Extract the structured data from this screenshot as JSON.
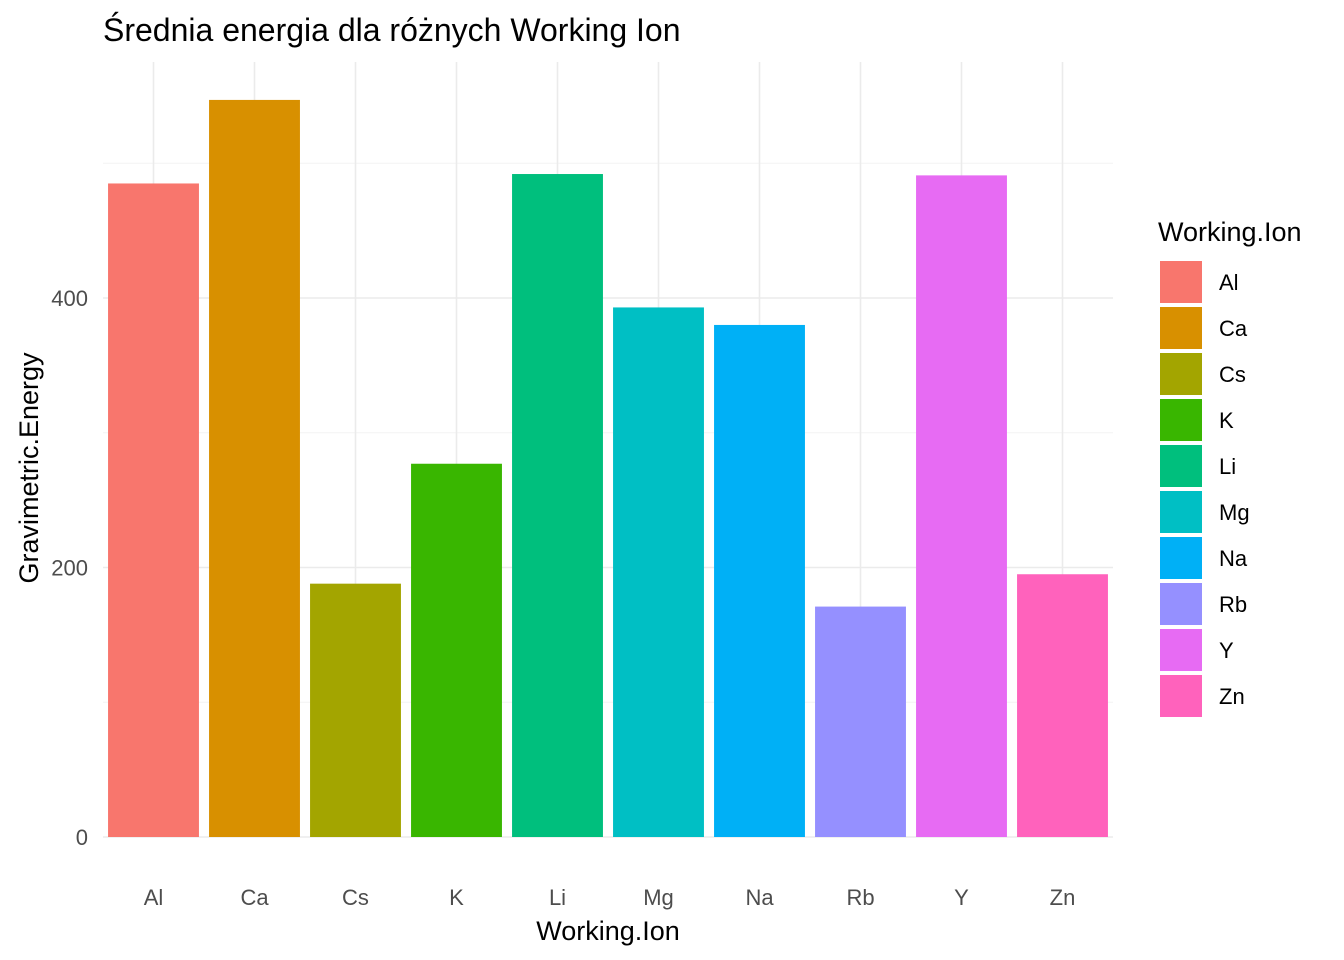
{
  "chart_data": {
    "type": "bar",
    "title": "Średnia energia dla różnych Working Ion",
    "xlabel": "Working.Ion",
    "ylabel": "Gravimetric.Energy",
    "categories": [
      "Al",
      "Ca",
      "Cs",
      "K",
      "Li",
      "Mg",
      "Na",
      "Rb",
      "Y",
      "Zn"
    ],
    "values": [
      485,
      547,
      188,
      277,
      492,
      393,
      380,
      171,
      491,
      195
    ],
    "colors": [
      "#F8766D",
      "#D89000",
      "#A3A500",
      "#39B600",
      "#00BF7D",
      "#00BFC4",
      "#00B0F6",
      "#9590FF",
      "#E76BF3",
      "#FF62BC"
    ],
    "y_ticks": [
      0,
      200,
      400
    ],
    "y_minor_ticks": [
      100,
      300,
      500
    ],
    "ylim": [
      0,
      574
    ],
    "grid": true,
    "legend": {
      "title": "Working.Ion",
      "position": "right",
      "entries": [
        "Al",
        "Ca",
        "Cs",
        "K",
        "Li",
        "Mg",
        "Na",
        "Rb",
        "Y",
        "Zn"
      ]
    }
  }
}
